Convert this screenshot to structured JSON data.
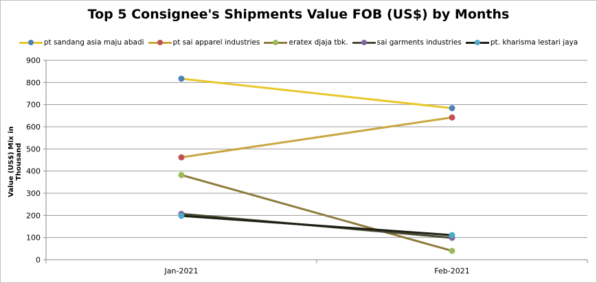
{
  "chart_data": {
    "type": "line",
    "title": "Top 5 Consignee's Shipments Value FOB (US$) by Months",
    "xlabel": "",
    "ylabel": "Value (US$) Mix in Thousand",
    "categories": [
      "Jan-2021",
      "Feb-2021"
    ],
    "ylim": [
      0,
      900
    ],
    "yticks": [
      0,
      100,
      200,
      300,
      400,
      500,
      600,
      700,
      800,
      900
    ],
    "grid": true,
    "legend_position": "top",
    "series": [
      {
        "name": "pt sandang asia maju abadi",
        "values": [
          817,
          684
        ],
        "line_color": "#e8c72a",
        "marker_color": "#4f81bd"
      },
      {
        "name": "pt sai apparel industries",
        "values": [
          462,
          642
        ],
        "line_color": "#c9a640",
        "marker_color": "#c0504d"
      },
      {
        "name": "eratex djaja tbk.",
        "values": [
          382,
          40
        ],
        "line_color": "#8e7a3c",
        "marker_color": "#9bbb59"
      },
      {
        "name": "sai garments industries",
        "values": [
          207,
          99
        ],
        "line_color": "#4a4a32",
        "marker_color": "#8064a2"
      },
      {
        "name": "pt. kharisma lestari jaya",
        "values": [
          198,
          111
        ],
        "line_color": "#1f1f16",
        "marker_color": "#4bacc6"
      }
    ]
  }
}
